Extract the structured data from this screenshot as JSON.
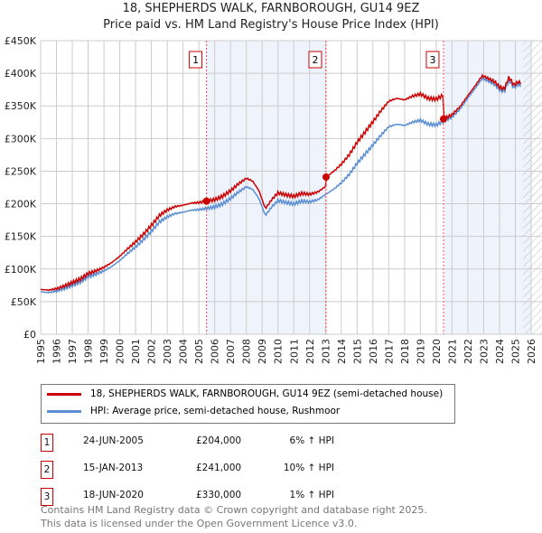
{
  "chart_data": {
    "type": "line",
    "title": "18, SHEPHERDS WALK, FARNBOROUGH, GU14 9EZ",
    "subtitle": "Price paid vs. HM Land Registry's House Price Index (HPI)",
    "ylim": [
      0,
      450000
    ],
    "xlim": [
      1995,
      2026
    ],
    "y_ticks": [
      "£0",
      "£50K",
      "£100K",
      "£150K",
      "£200K",
      "£250K",
      "£300K",
      "£350K",
      "£400K",
      "£450K"
    ],
    "x_ticks": [
      "1995",
      "1996",
      "1997",
      "1998",
      "1999",
      "2000",
      "2001",
      "2002",
      "2003",
      "2004",
      "2005",
      "2006",
      "2007",
      "2008",
      "2009",
      "2010",
      "2011",
      "2012",
      "2013",
      "2014",
      "2015",
      "2016",
      "2017",
      "2018",
      "2019",
      "2020",
      "2021",
      "2022",
      "2023",
      "2024",
      "2025",
      "2026"
    ],
    "grid": true,
    "series": [
      {
        "name": "18, SHEPHERDS WALK, FARNBOROUGH, GU14 9EZ (semi-detached house)",
        "color": "#cc0000"
      },
      {
        "name": "HPI: Average price, semi-detached house, Rushmoor",
        "color": "#5b8fd4",
        "x": [
          1995,
          1995.5,
          1996,
          1996.5,
          1997,
          1997.5,
          1998,
          1998.5,
          1999,
          1999.5,
          2000,
          2000.5,
          2001,
          2001.5,
          2002,
          2002.5,
          2003,
          2003.5,
          2004,
          2004.5,
          2005,
          2005.5,
          2006,
          2006.5,
          2007,
          2007.5,
          2008,
          2008.4,
          2008.8,
          2009.2,
          2009.6,
          2010,
          2010.5,
          2011,
          2011.5,
          2012,
          2012.5,
          2013,
          2013.5,
          2014,
          2014.5,
          2015,
          2015.5,
          2016,
          2016.5,
          2017,
          2017.5,
          2018,
          2018.5,
          2019,
          2019.5,
          2020,
          2020.5,
          2021,
          2021.5,
          2022,
          2022.5,
          2022.9,
          2023.3,
          2023.7,
          2024,
          2024.3,
          2024.6,
          2024.9,
          2025.2,
          2025.4
        ],
        "y": [
          65000,
          64000,
          66000,
          70000,
          75000,
          80000,
          88000,
          92000,
          97000,
          104000,
          113000,
          124000,
          134000,
          145000,
          158000,
          172000,
          180000,
          185000,
          187000,
          190000,
          191000,
          193000,
          195000,
          200000,
          208000,
          218000,
          226000,
          222000,
          208000,
          182000,
          195000,
          205000,
          202000,
          200000,
          204000,
          203000,
          206000,
          214000,
          222000,
          232000,
          245000,
          262000,
          276000,
          290000,
          305000,
          318000,
          322000,
          320000,
          325000,
          328000,
          322000,
          321000,
          327000,
          333000,
          345000,
          362000,
          378000,
          392000,
          388000,
          383000,
          375000,
          372000,
          390000,
          378000,
          383000,
          380000
        ]
      }
    ],
    "sales": [
      {
        "n": "1",
        "x": 2005.48,
        "date": "24-JUN-2005",
        "price": 204000,
        "price_label": "£204,000",
        "hpi": "6% ↑ HPI"
      },
      {
        "n": "2",
        "x": 2013.04,
        "date": "15-JAN-2013",
        "price": 241000,
        "price_label": "£241,000",
        "hpi": "10% ↑ HPI"
      },
      {
        "n": "3",
        "x": 2020.46,
        "date": "18-JUN-2020",
        "price": 330000,
        "price_label": "£330,000",
        "hpi": "1% ↑ HPI"
      }
    ],
    "hatch_from": 2025.5
  },
  "footer": {
    "line1": "Contains HM Land Registry data © Crown copyright and database right 2025.",
    "line2": "This data is licensed under the Open Government Licence v3.0."
  }
}
